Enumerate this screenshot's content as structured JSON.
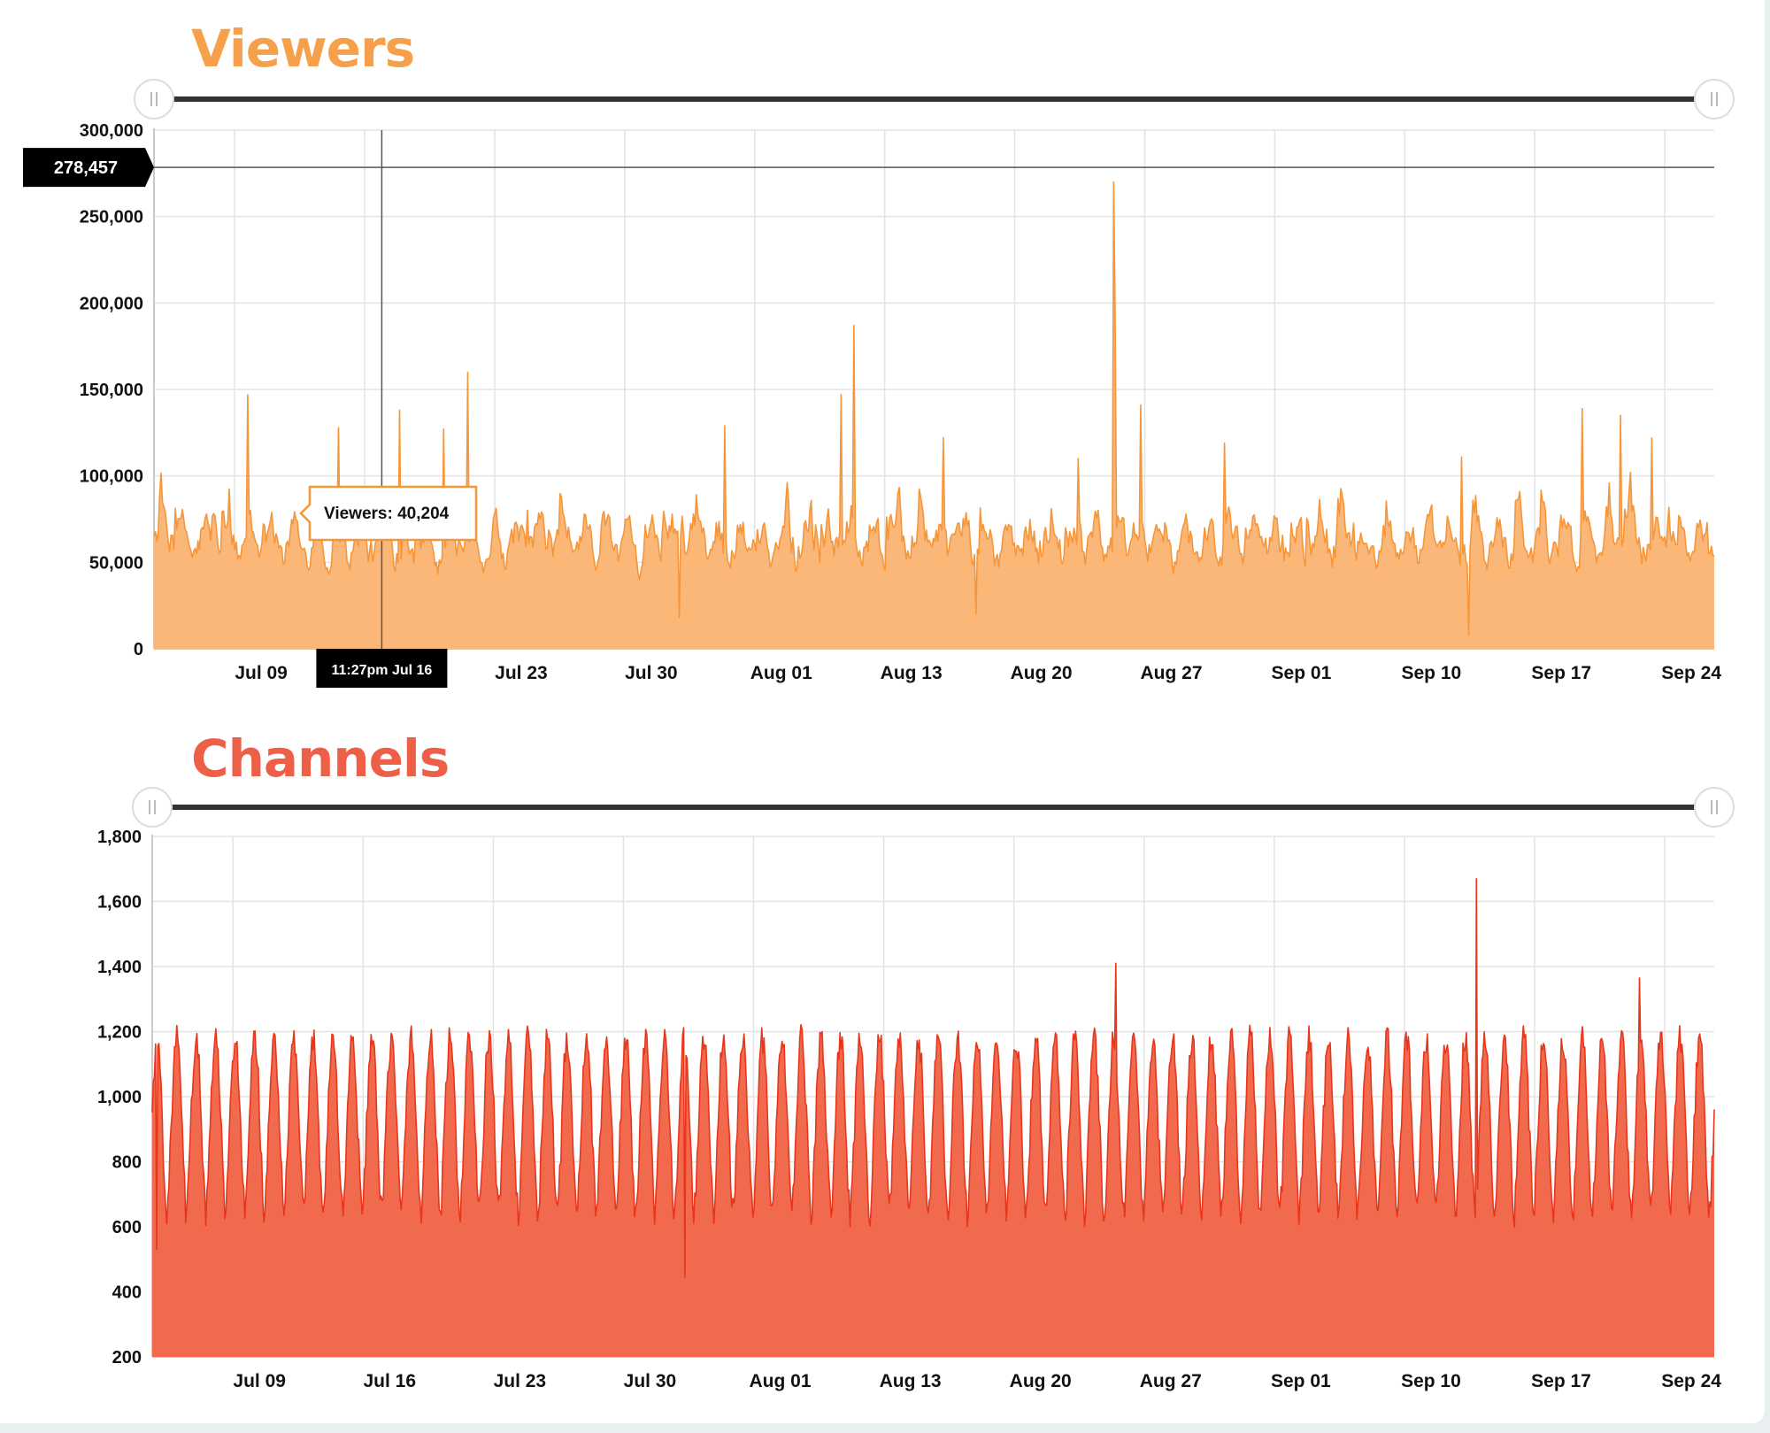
{
  "colors": {
    "viewers_title": "#f7a04b",
    "viewers_line": "#f5963a",
    "viewers_fill": "#fbb777",
    "channels_title": "#ee5f48",
    "channels_line": "#e8361c",
    "channels_fill": "#f16a4e"
  },
  "chart_data": [
    {
      "type": "area",
      "title": "Viewers",
      "x_ticks": [
        "Jul 09",
        "Jul 16",
        "Jul 23",
        "Jul 30",
        "Aug 01",
        "Aug 13",
        "Aug 20",
        "Aug 27",
        "Sep 01",
        "Sep 10",
        "Sep 17",
        "Sep 24"
      ],
      "ylim": [
        0,
        300000
      ],
      "y_ticks": [
        "0",
        "50,000",
        "100,000",
        "150,000",
        "200,000",
        "250,000",
        "300,000"
      ],
      "grid": true,
      "range_slider": true,
      "series": [
        {
          "name": "Viewers",
          "baseline": 62000,
          "noise": 16000,
          "cycle_amplitude": 10000,
          "cycles": 70,
          "peaks": [
            {
              "x": 0.06,
              "value": 147000
            },
            {
              "x": 0.118,
              "value": 128000
            },
            {
              "x": 0.157,
              "value": 138000
            },
            {
              "x": 0.186,
              "value": 127000
            },
            {
              "x": 0.201,
              "value": 160000
            },
            {
              "x": 0.366,
              "value": 129000
            },
            {
              "x": 0.44,
              "value": 147000
            },
            {
              "x": 0.449,
              "value": 187000
            },
            {
              "x": 0.506,
              "value": 122000
            },
            {
              "x": 0.592,
              "value": 110000
            },
            {
              "x": 0.615,
              "value": 270000
            },
            {
              "x": 0.616,
              "value": 195000
            },
            {
              "x": 0.632,
              "value": 141000
            },
            {
              "x": 0.686,
              "value": 119000
            },
            {
              "x": 0.838,
              "value": 111000
            },
            {
              "x": 0.915,
              "value": 139000
            },
            {
              "x": 0.94,
              "value": 135000
            },
            {
              "x": 0.96,
              "value": 122000
            }
          ],
          "dips": [
            {
              "x": 0.337,
              "value": 18000
            },
            {
              "x": 0.527,
              "value": 20000
            },
            {
              "x": 0.843,
              "value": 8000
            }
          ]
        }
      ],
      "crosshair": {
        "x_label": "11:27pm Jul 16",
        "y_label": "278,457",
        "y_value": 278457,
        "x": 0.146
      },
      "tooltip": {
        "label": "Viewers: 40,204",
        "value": 40204
      }
    },
    {
      "type": "area",
      "title": "Channels",
      "x_ticks": [
        "Jul 09",
        "Jul 16",
        "Jul 23",
        "Jul 30",
        "Aug 01",
        "Aug 13",
        "Aug 20",
        "Aug 27",
        "Sep 01",
        "Sep 10",
        "Sep 17",
        "Sep 24"
      ],
      "ylim": [
        200,
        1800
      ],
      "y_ticks": [
        "200",
        "400",
        "600",
        "800",
        "1,000",
        "1,200",
        "1,400",
        "1,600",
        "1,800"
      ],
      "grid": true,
      "range_slider": true,
      "series": [
        {
          "name": "Channels",
          "min": 640,
          "max": 1180,
          "cycles": 80,
          "peaks": [
            {
              "x": 0.617,
              "value": 1410
            },
            {
              "x": 0.848,
              "value": 1670
            },
            {
              "x": 0.952,
              "value": 1365
            }
          ],
          "dips": [
            {
              "x": 0.341,
              "value": 445
            },
            {
              "x": 0.003,
              "value": 530
            }
          ]
        }
      ]
    }
  ]
}
